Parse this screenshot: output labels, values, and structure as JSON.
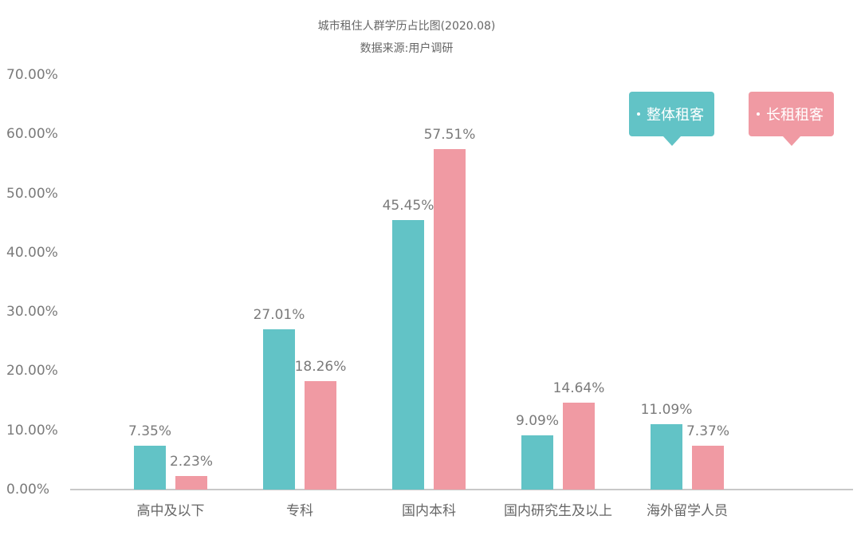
{
  "header": {
    "title": "城市租住人群学历占比图(2020.08)",
    "subtitle": "数据来源:用户调研"
  },
  "legend": [
    {
      "label": "整体租客",
      "color": "#62c3c6"
    },
    {
      "label": "长租租客",
      "color": "#f09aa3"
    }
  ],
  "y_axis": {
    "ticks": [
      "70.00%",
      "60.00%",
      "50.00%",
      "40.00%",
      "30.00%",
      "20.00%",
      "10.00%",
      "0.00%"
    ]
  },
  "groups": [
    {
      "category": "高中及以下",
      "overall": "7.35%",
      "longterm": "2.23%"
    },
    {
      "category": "专科",
      "overall": "27.01%",
      "longterm": "18.26%"
    },
    {
      "category": "国内本科",
      "overall": "45.45%",
      "longterm": "57.51%"
    },
    {
      "category": "国内研究生及以上",
      "overall": "9.09%",
      "longterm": "14.64%"
    },
    {
      "category": "海外留学人员",
      "overall": "11.09%",
      "longterm": "7.37%"
    }
  ],
  "chart_data": {
    "type": "bar",
    "title": "城市租住人群学历占比图(2020.08)",
    "subtitle": "数据来源:用户调研",
    "categories": [
      "高中及以下",
      "专科",
      "国内本科",
      "国内研究生及以上",
      "海外留学人员"
    ],
    "series": [
      {
        "name": "整体租客",
        "color": "#62c3c6",
        "values": [
          7.35,
          27.01,
          45.45,
          9.09,
          11.09
        ]
      },
      {
        "name": "长租租客",
        "color": "#f09aa3",
        "values": [
          2.23,
          18.26,
          57.51,
          14.64,
          7.37
        ]
      }
    ],
    "xlabel": "",
    "ylabel": "",
    "ylim": [
      0,
      70
    ],
    "yticks": [
      "0.00%",
      "10.00%",
      "20.00%",
      "30.00%",
      "40.00%",
      "50.00%",
      "60.00%",
      "70.00%"
    ],
    "value_format": "percent, 2 decimals",
    "grid": false,
    "legend_position": "top-right"
  }
}
